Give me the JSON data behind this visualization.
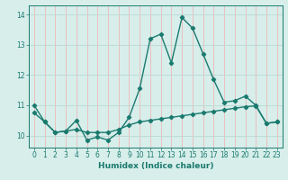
{
  "xlabel": "Humidex (Indice chaleur)",
  "ylabel": "",
  "xlim": [
    -0.5,
    23.5
  ],
  "ylim": [
    9.6,
    14.3
  ],
  "yticks": [
    10,
    11,
    12,
    13,
    14
  ],
  "xticks": [
    0,
    1,
    2,
    3,
    4,
    5,
    6,
    7,
    8,
    9,
    10,
    11,
    12,
    13,
    14,
    15,
    16,
    17,
    18,
    19,
    20,
    21,
    22,
    23
  ],
  "bg_color": "#d7eeeb",
  "grid_color_v": "#f0b8b8",
  "grid_color_h": "#b8d8d4",
  "line_color": "#1a7a6e",
  "line1_x": [
    0,
    1,
    2,
    3,
    4,
    5,
    6,
    7,
    8,
    9,
    10,
    11,
    12,
    13,
    14,
    15,
    16,
    17,
    18,
    19,
    20,
    21,
    22,
    23
  ],
  "line1_y": [
    11.0,
    10.45,
    10.1,
    10.15,
    10.5,
    9.85,
    9.95,
    9.85,
    10.1,
    10.6,
    11.55,
    13.2,
    13.35,
    12.4,
    13.9,
    13.55,
    12.7,
    11.85,
    11.1,
    11.15,
    11.3,
    11.0,
    10.4,
    10.45
  ],
  "line2_x": [
    0,
    1,
    2,
    3,
    4,
    5,
    6,
    7,
    8,
    9,
    10,
    11,
    12,
    13,
    14,
    15,
    16,
    17,
    18,
    19,
    20,
    21,
    22,
    23
  ],
  "line2_y": [
    10.75,
    10.45,
    10.1,
    10.15,
    10.2,
    10.1,
    10.1,
    10.1,
    10.2,
    10.35,
    10.45,
    10.5,
    10.55,
    10.6,
    10.65,
    10.7,
    10.75,
    10.8,
    10.85,
    10.9,
    10.95,
    10.98,
    10.4,
    10.45
  ],
  "tick_fontsize": 5.5,
  "xlabel_fontsize": 6.5,
  "tick_color": "#1a7a6e"
}
